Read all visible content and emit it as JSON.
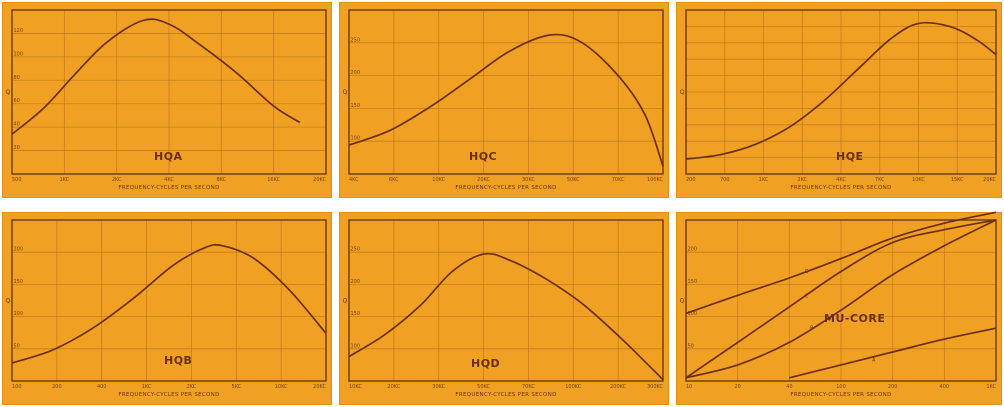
{
  "chart_data": [
    {
      "type": "line",
      "title": "HQA",
      "xlabel": "FREQUENCY-CYCLES PER SECOND",
      "ylabel": "Q",
      "ylim": [
        0,
        140
      ],
      "x_ticks": [
        "500",
        "1KC",
        "2KC",
        "4KC",
        "8KC",
        "16KC",
        "20KC"
      ],
      "y_ticks": [
        "",
        "20",
        "40",
        "60",
        "80",
        "100",
        "120",
        ""
      ],
      "series": [
        {
          "points": [
            [
              0,
              34
            ],
            [
              0.6,
              56
            ],
            [
              1.2,
              85
            ],
            [
              1.8,
              112
            ],
            [
              2.5,
              131
            ],
            [
              3.0,
              128
            ],
            [
              3.6,
              110
            ],
            [
              4.3,
              86
            ],
            [
              5.0,
              58
            ],
            [
              5.5,
              44
            ]
          ]
        }
      ]
    },
    {
      "type": "line",
      "title": "HQC",
      "xlabel": "FREQUENCY-CYCLES PER SECOND",
      "ylabel": "Q",
      "ylim": [
        50,
        300
      ],
      "x_ticks": [
        "4KC",
        "6KC",
        "10KC",
        "20KC",
        "30KC",
        "50KC",
        "70KC",
        "100KC"
      ],
      "y_ticks": [
        "",
        "100",
        "150",
        "200",
        "250",
        ""
      ],
      "series": [
        {
          "points": [
            [
              0,
              94
            ],
            [
              0.9,
              116
            ],
            [
              1.8,
              152
            ],
            [
              2.7,
              195
            ],
            [
              3.6,
              238
            ],
            [
              4.5,
              262
            ],
            [
              5.2,
              250
            ],
            [
              6.0,
              200
            ],
            [
              6.6,
              140
            ],
            [
              7.0,
              62
            ]
          ]
        }
      ]
    },
    {
      "type": "line",
      "title": "HQE",
      "xlabel": "FREQUENCY-CYCLES PER SECOND",
      "ylabel": "Q",
      "ylim": [
        50,
        160
      ],
      "x_ticks": [
        "200",
        "700",
        "1KC",
        "2KC",
        "4KC",
        "7KC",
        "10KC",
        "15KC",
        "20KC"
      ],
      "y_ticks": [
        "",
        "",
        "",
        "",
        "",
        "",
        "",
        "",
        "",
        "",
        ""
      ],
      "series": [
        {
          "points": [
            [
              0,
              60
            ],
            [
              0.9,
              63
            ],
            [
              1.8,
              70
            ],
            [
              2.7,
              82
            ],
            [
              3.6,
              100
            ],
            [
              4.5,
              122
            ],
            [
              5.3,
              141
            ],
            [
              6.0,
              151
            ],
            [
              6.8,
              149
            ],
            [
              7.5,
              140
            ],
            [
              8.0,
              130
            ]
          ]
        }
      ]
    },
    {
      "type": "line",
      "title": "HQB",
      "xlabel": "FREQUENCY-CYCLES PER SECOND",
      "ylabel": "Q",
      "ylim": [
        0,
        250
      ],
      "x_ticks": [
        "100",
        "200",
        "400",
        "1KC",
        "2KC",
        "5KC",
        "10KC",
        "20KC"
      ],
      "y_ticks": [
        "",
        "50",
        "100",
        "150",
        "200",
        ""
      ],
      "series": [
        {
          "points": [
            [
              0,
              28
            ],
            [
              0.9,
              48
            ],
            [
              1.8,
              82
            ],
            [
              2.7,
              128
            ],
            [
              3.6,
              180
            ],
            [
              4.3,
              207
            ],
            [
              4.7,
              210
            ],
            [
              5.4,
              190
            ],
            [
              6.2,
              140
            ],
            [
              7.0,
              74
            ]
          ]
        }
      ]
    },
    {
      "type": "line",
      "title": "HQD",
      "xlabel": "FREQUENCY-CYCLES PER SECOND",
      "ylabel": "Q",
      "ylim": [
        50,
        300
      ],
      "x_ticks": [
        "10KC",
        "20KC",
        "30KC",
        "50KC",
        "70KC",
        "100KC",
        "200KC",
        "300KC"
      ],
      "y_ticks": [
        "",
        "100",
        "150",
        "200",
        "250",
        ""
      ],
      "series": [
        {
          "points": [
            [
              0,
              88
            ],
            [
              0.8,
              122
            ],
            [
              1.6,
              168
            ],
            [
              2.3,
              220
            ],
            [
              3.0,
              247
            ],
            [
              3.6,
              237
            ],
            [
              4.4,
              208
            ],
            [
              5.2,
              170
            ],
            [
              6.1,
              114
            ],
            [
              7.0,
              52
            ]
          ]
        }
      ]
    },
    {
      "type": "line",
      "title": "MU-CORE",
      "xlabel": "FREQUENCY-CYCLES PER SECOND",
      "ylabel": "Q",
      "ylim": [
        0,
        250
      ],
      "x_ticks": [
        "10",
        "20",
        "40",
        "100",
        "200",
        "400",
        "1KC"
      ],
      "y_ticks": [
        "",
        "50",
        "100",
        "150",
        "200",
        ""
      ],
      "series": [
        {
          "name": "D",
          "points": [
            [
              0,
              105
            ],
            [
              1,
              133
            ],
            [
              2,
              160
            ],
            [
              3,
              190
            ],
            [
              4,
              222
            ],
            [
              5,
              245
            ],
            [
              6,
              262
            ]
          ]
        },
        {
          "name": "C",
          "points": [
            [
              0,
              5
            ],
            [
              1,
              60
            ],
            [
              2,
              115
            ],
            [
              3,
              170
            ],
            [
              4,
              215
            ],
            [
              5,
              235
            ],
            [
              6,
              250
            ]
          ]
        },
        {
          "name": "B",
          "points": [
            [
              0,
              5
            ],
            [
              1,
              25
            ],
            [
              2,
              60
            ],
            [
              3,
              110
            ],
            [
              4,
              165
            ],
            [
              5,
              210
            ],
            [
              6,
              250
            ]
          ]
        },
        {
          "name": "A",
          "points": [
            [
              2,
              5
            ],
            [
              3,
              25
            ],
            [
              4,
              45
            ],
            [
              5,
              65
            ],
            [
              6,
              82
            ]
          ]
        }
      ]
    }
  ]
}
